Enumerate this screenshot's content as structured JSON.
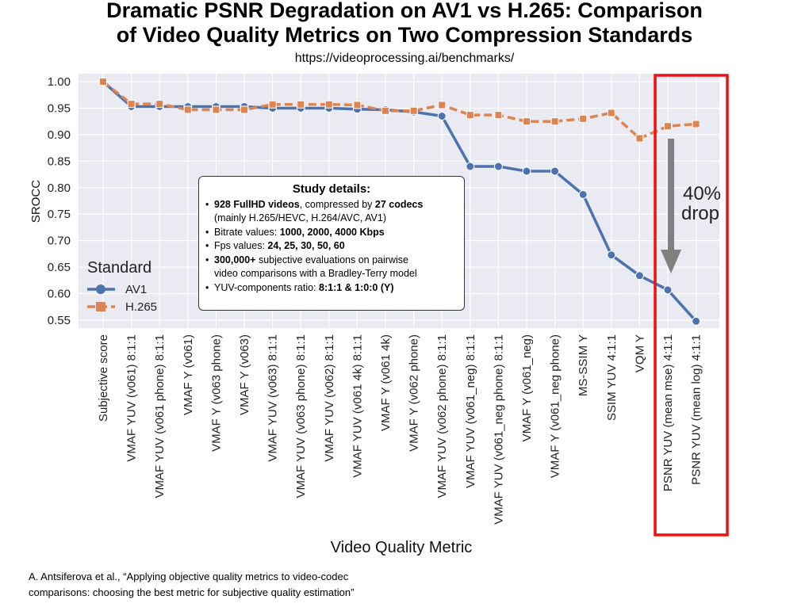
{
  "header": {
    "title_line1": "Dramatic PSNR Degradation on AV1 vs H.265: Comparison",
    "title_line2": "of Video Quality Metrics on Two Compression Standards",
    "subtitle": "https://videoprocessing.ai/benchmarks/"
  },
  "annotation": {
    "line1": "40%",
    "line2": "drop"
  },
  "study": {
    "title": "Study details:",
    "lines": [
      {
        "b1": "928 FullHD videos",
        "t1": ", compressed by ",
        "b2": "27 codecs",
        "t2": ""
      },
      {
        "b1": "",
        "t1": "(mainly H.265/HEVC, H.264/AVC, AV1)",
        "b2": "",
        "t2": ""
      },
      {
        "b1": "",
        "t1": "Bitrate values: ",
        "b2": "1000, 2000, 4000 Kbps",
        "t2": ""
      },
      {
        "b1": "",
        "t1": "Fps values: ",
        "b2": "24, 25, 30, 50, 60",
        "t2": ""
      },
      {
        "b1": "300,000+",
        "t1": " subjective evaluations on pairwise",
        "b2": "",
        "t2": ""
      },
      {
        "b1": "",
        "t1": "video comparisons with a Bradley-Terry model",
        "b2": "",
        "t2": ""
      },
      {
        "b1": "",
        "t1": "YUV-components ratio: ",
        "b2": "8:1:1 & 1:0:0 (Y)",
        "t2": ""
      }
    ]
  },
  "citation": {
    "line1": "A. Antsiferova et al., “Applying objective quality metrics to video-codec",
    "line2": "comparisons: choosing the best metric for subjective quality estimation”"
  },
  "colors": {
    "av1": "#4c72b0",
    "h265": "#dd8452",
    "plot_bg": "#eaeaf2",
    "highlight": "#ee1111",
    "arrow": "#808080"
  },
  "chart_data": {
    "type": "line",
    "title": "Dramatic PSNR Degradation on AV1 vs H.265: Comparison of Video Quality Metrics on Two Compression Standards",
    "xlabel": "Video Quality Metric",
    "ylabel": "SROCC",
    "ylim": [
      0.535,
      1.015
    ],
    "yticks": [
      0.55,
      0.6,
      0.65,
      0.7,
      0.75,
      0.8,
      0.85,
      0.9,
      0.95,
      1.0
    ],
    "grid": true,
    "legend": {
      "title": "Standard",
      "placement": "lower-left"
    },
    "categories": [
      "Subjective score",
      "VMAF YUV (v061) 8:1:1",
      "VMAF YUV (v061 phone) 8:1:1",
      "VMAF Y (v061)",
      "VMAF Y (v063 phone)",
      "VMAF Y (v063)",
      "VMAF YUV (v063) 8:1:1",
      "VMAF YUV (v063 phone) 8:1:1",
      "VMAF YUV (v062) 8:1:1",
      "VMAF YUV (v061 4k) 8:1:1",
      "VMAF Y (v061 4k)",
      "VMAF Y (v062 phone)",
      "VMAF YUV (v062 phone) 8:1:1",
      "VMAF YUV (v061_neg) 8:1:1",
      "VMAF YUV (v061_neg phone) 8:1:1",
      "VMAF Y (v061_neg)",
      "VMAF Y (v061_neg phone)",
      "MS-SSIM Y",
      "SSIM YUV 4:1:1",
      "VQM Y",
      "PSNR YUV (mean mse) 4:1:1",
      "PSNR YUV (mean log) 4:1:1"
    ],
    "series": [
      {
        "name": "AV1",
        "marker": "circle",
        "dash": "solid",
        "values": [
          1.0,
          0.953,
          0.953,
          0.953,
          0.953,
          0.953,
          0.95,
          0.95,
          0.95,
          0.948,
          0.947,
          0.943,
          0.935,
          0.84,
          0.84,
          0.831,
          0.831,
          0.787,
          0.673,
          0.634,
          0.607,
          0.548
        ]
      },
      {
        "name": "H.265",
        "marker": "square",
        "dash": "dashed",
        "values": [
          1.0,
          0.958,
          0.958,
          0.947,
          0.947,
          0.947,
          0.957,
          0.957,
          0.957,
          0.956,
          0.945,
          0.945,
          0.956,
          0.937,
          0.937,
          0.925,
          0.925,
          0.93,
          0.941,
          0.893,
          0.916,
          0.92
        ]
      }
    ]
  }
}
